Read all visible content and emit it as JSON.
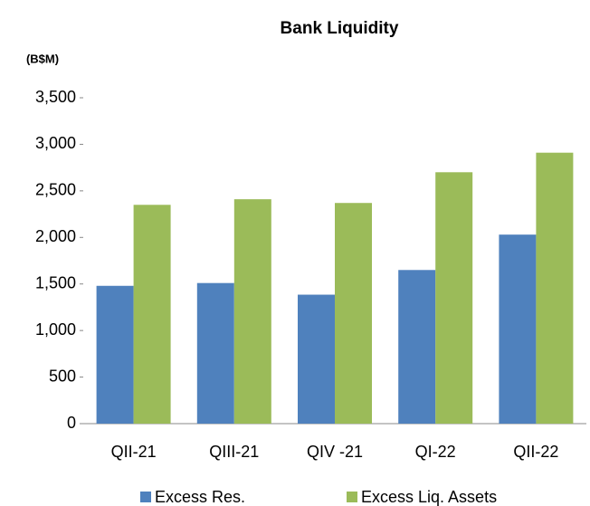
{
  "chart_data": {
    "type": "bar",
    "title": "Bank Liquidity",
    "y_label": "(B$M)",
    "categories": [
      "QII-21",
      "QIII-21",
      "QIV -21",
      "QI-22",
      "QII-22"
    ],
    "series": [
      {
        "name": "Excess Res.",
        "color": "#4f81bd",
        "values": [
          1480,
          1510,
          1385,
          1650,
          2030
        ]
      },
      {
        "name": "Excess Liq. Assets",
        "color": "#9bbb59",
        "values": [
          2350,
          2410,
          2370,
          2700,
          2910
        ]
      }
    ],
    "ylim": [
      0,
      3500
    ],
    "yticks": [
      0,
      500,
      {
        "value": 1000,
        "label": "1,000"
      },
      {
        "value": 1500,
        "label": "1,500"
      },
      {
        "value": 2000,
        "label": "2,000"
      },
      {
        "value": 2500,
        "label": "2,500"
      },
      {
        "value": 3000,
        "label": "3,000"
      },
      {
        "value": 3500,
        "label": "3,500"
      }
    ],
    "grid": false,
    "legend": "bottom"
  }
}
